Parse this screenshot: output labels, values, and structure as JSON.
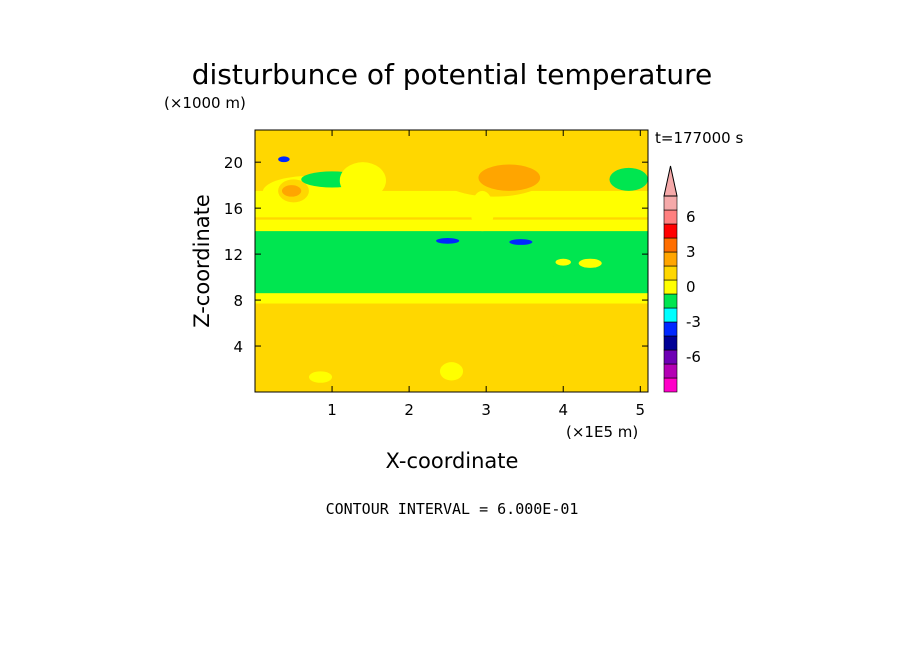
{
  "chart_data": {
    "type": "heatmap",
    "title": "disturbunce of potential temperature",
    "ylabel": "Z-coordinate",
    "xlabel": "X-coordinate",
    "y_unit_label": "(×1000 m)",
    "x_unit_label": "(×1E5 m)",
    "time_label": "t=177000 s",
    "footer": "CONTOUR INTERVAL = 6.000E-01",
    "xlim": [
      0,
      5.1
    ],
    "ylim": [
      0,
      22.8
    ],
    "x_ticks": [
      "1",
      "2",
      "3",
      "4",
      "5"
    ],
    "x_tick_values": [
      1,
      2,
      3,
      4,
      5
    ],
    "y_ticks": [
      "4",
      "8",
      "12",
      "16",
      "20"
    ],
    "y_tick_values": [
      4,
      8,
      12,
      16,
      20
    ],
    "colorbar": {
      "tick_labels": [
        "6",
        "3",
        "0",
        "-3",
        "-6"
      ],
      "tick_values": [
        6,
        3,
        0,
        -3,
        -6
      ],
      "colors": [
        "#ff00c8",
        "#b400b4",
        "#6e00b4",
        "#000096",
        "#0028ff",
        "#00ffff",
        "#00e650",
        "#ffff00",
        "#ffd700",
        "#ffa500",
        "#ff6e00",
        "#ff0000",
        "#ff8080",
        "#f5a9a9"
      ]
    },
    "regions": [
      {
        "x": [
          0,
          5.1
        ],
        "z": [
          0,
          22.8
        ],
        "value": 0.9
      },
      {
        "x": [
          0,
          5.1
        ],
        "z": [
          15.2,
          17.5
        ],
        "value": 0.3
      },
      {
        "x": [
          0,
          5.1
        ],
        "z": [
          13.8,
          15.0
        ],
        "value": 0.3
      },
      {
        "x": [
          0,
          5.1
        ],
        "z": [
          8.2,
          14.0
        ],
        "value": -0.9
      },
      {
        "x": [
          0,
          5.1
        ],
        "z": [
          7.7,
          8.6
        ],
        "value": 0.3
      },
      {
        "x": [
          0,
          5.1
        ],
        "z": [
          2.8,
          7.2
        ],
        "value": 0.9
      },
      {
        "x": [
          0,
          5.1
        ],
        "z": [
          0,
          3.2
        ],
        "value": 0.9
      },
      {
        "x": [
          0.1,
          1.3
        ],
        "z": [
          16.0,
          18.8
        ],
        "value": 0.3
      },
      {
        "x": [
          0.3,
          0.7
        ],
        "z": [
          16.5,
          18.5
        ],
        "value": 1.5
      },
      {
        "x": [
          0.35,
          0.6
        ],
        "z": [
          17.0,
          18.0
        ],
        "value": 2.1
      },
      {
        "x": [
          2.4,
          3.8
        ],
        "z": [
          17.0,
          20.5
        ],
        "value": 1.5
      },
      {
        "x": [
          2.9,
          3.7
        ],
        "z": [
          17.5,
          19.8
        ],
        "value": 2.1
      },
      {
        "x": [
          4.6,
          5.1
        ],
        "z": [
          17.5,
          19.5
        ],
        "value": -0.9
      },
      {
        "x": [
          0.6,
          1.4
        ],
        "z": [
          17.8,
          19.2
        ],
        "value": -0.9
      },
      {
        "x": [
          0.3,
          0.45
        ],
        "z": [
          20.0,
          20.5
        ],
        "value": -3.3
      },
      {
        "x": [
          2.35,
          2.65
        ],
        "z": [
          12.9,
          13.4
        ],
        "value": -3.3
      },
      {
        "x": [
          3.3,
          3.6
        ],
        "z": [
          12.8,
          13.3
        ],
        "value": -3.3
      },
      {
        "x": [
          4.8,
          5.1
        ],
        "z": [
          4.0,
          6.0
        ],
        "value": 1.5
      },
      {
        "x": [
          0.3,
          1.3
        ],
        "z": [
          4.5,
          6.5
        ],
        "value": 1.5
      },
      {
        "x": [
          2.2,
          3.3
        ],
        "z": [
          4.5,
          6.5
        ],
        "value": 1.5
      },
      {
        "x": [
          3.5,
          4.3
        ],
        "z": [
          4.8,
          6.2
        ],
        "value": 1.5
      },
      {
        "x": [
          0.7,
          1.0
        ],
        "z": [
          0.8,
          1.8
        ],
        "value": 0.3
      },
      {
        "x": [
          2.4,
          2.7
        ],
        "z": [
          1.0,
          2.6
        ],
        "value": 0.3
      },
      {
        "x": [
          3.9,
          4.1
        ],
        "z": [
          11.0,
          11.6
        ],
        "value": 0.3
      },
      {
        "x": [
          4.2,
          4.5
        ],
        "z": [
          10.8,
          11.6
        ],
        "value": 0.3
      },
      {
        "x": [
          1.1,
          1.7
        ],
        "z": [
          16.8,
          20.0
        ],
        "value": 0.3
      },
      {
        "x": [
          2.8,
          3.1
        ],
        "z": [
          14.0,
          17.5
        ],
        "value": 0.3
      }
    ]
  }
}
